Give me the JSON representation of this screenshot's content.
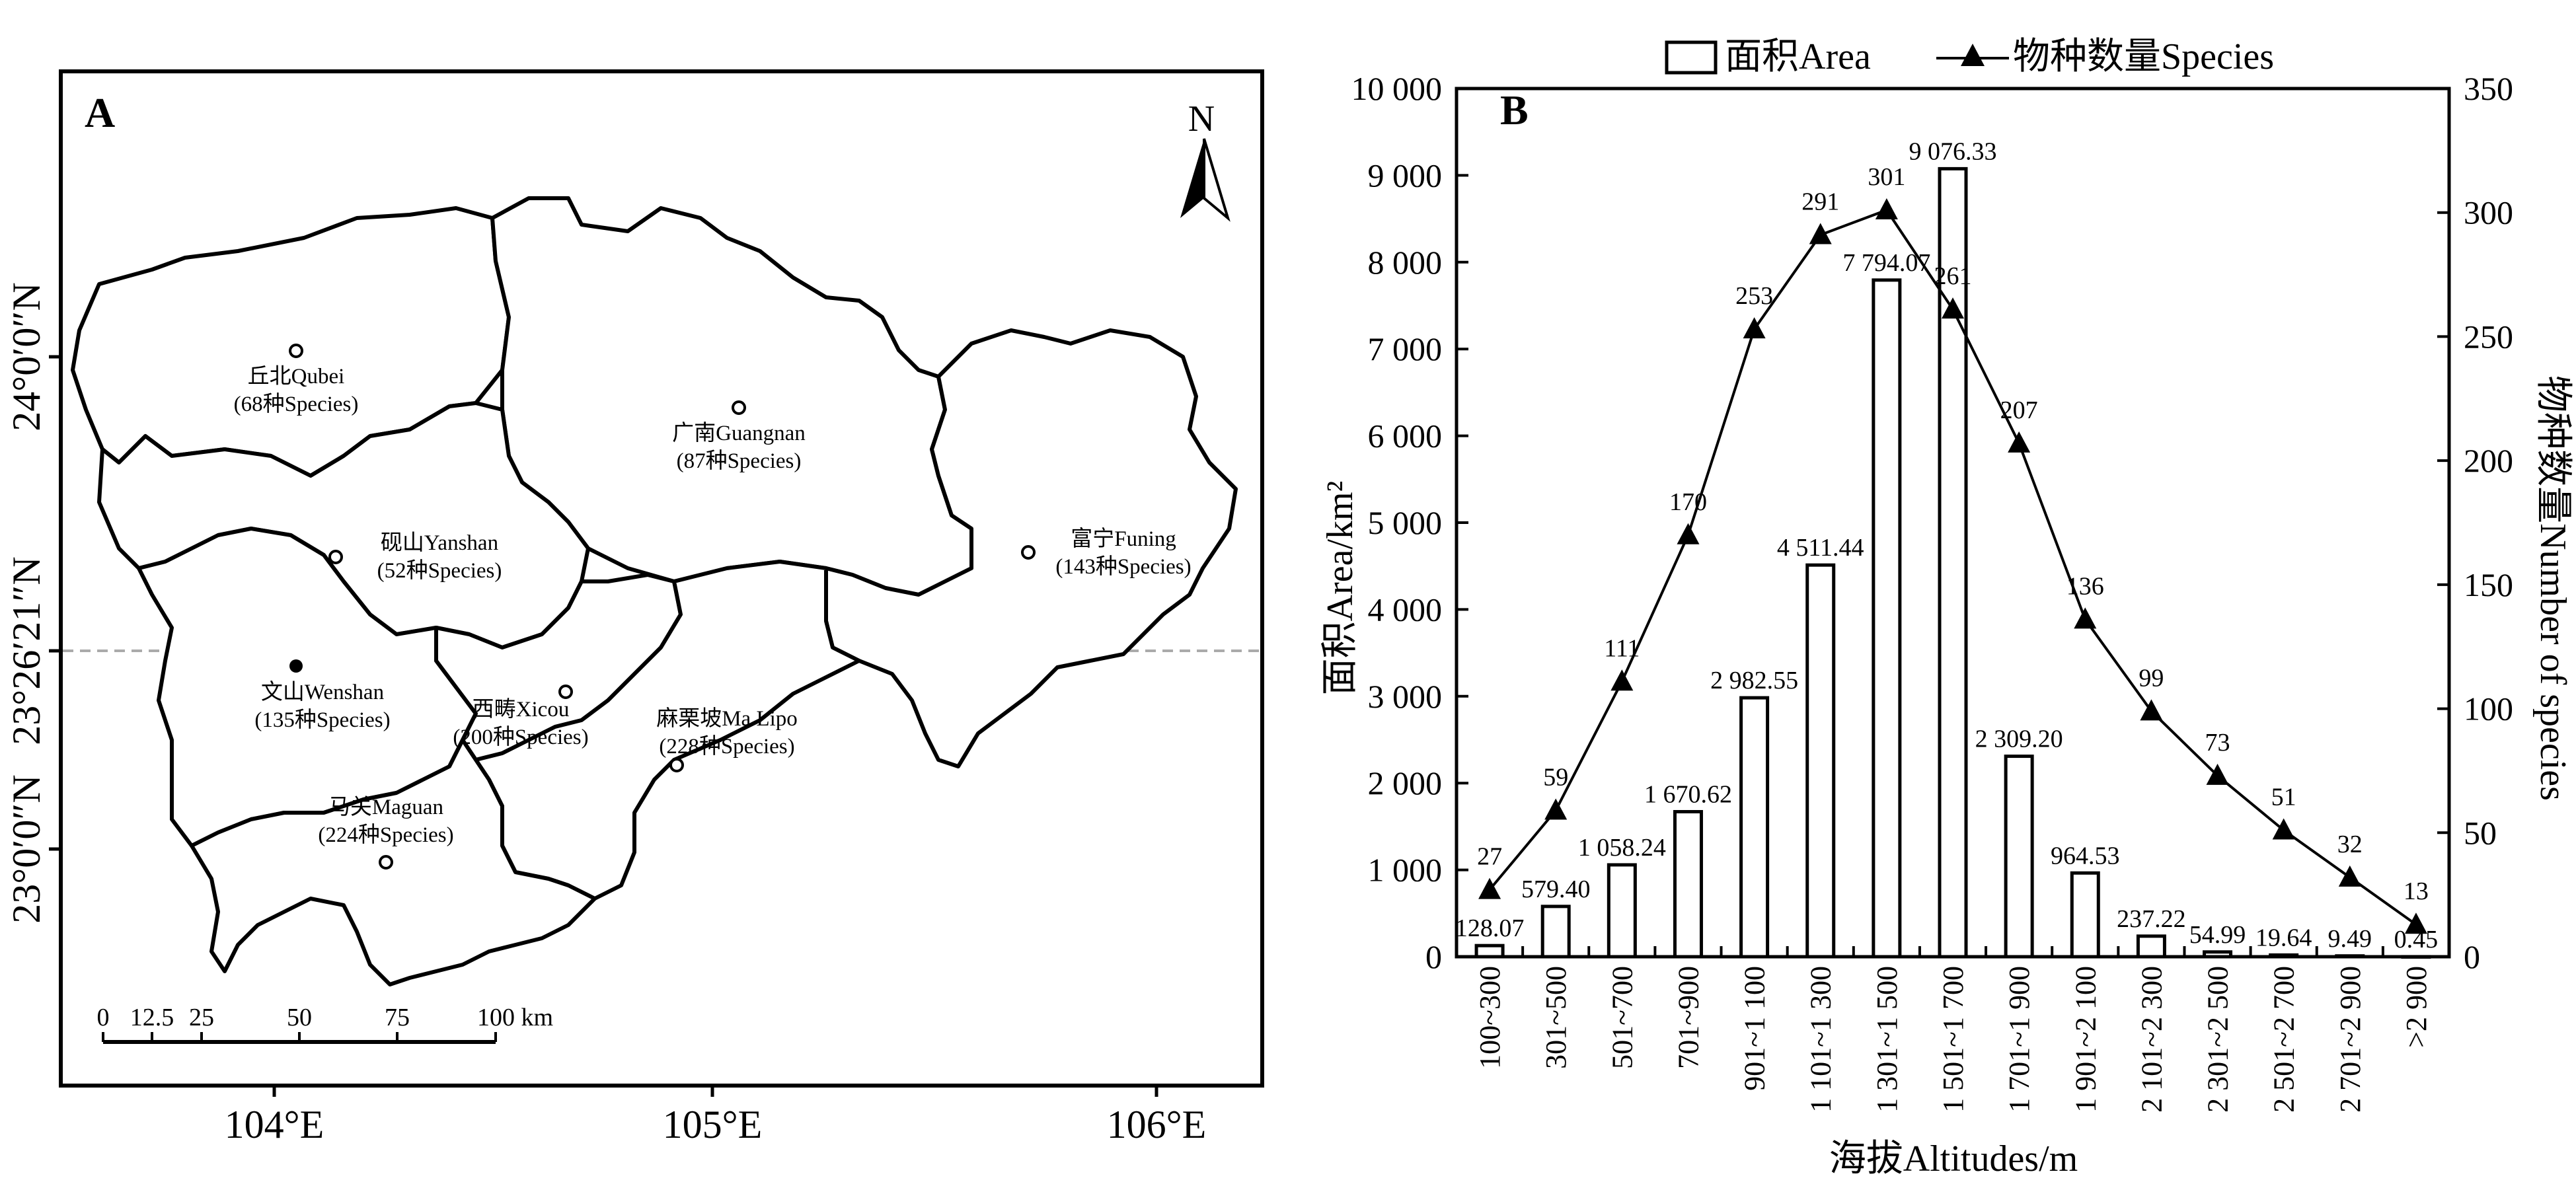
{
  "panel_a": {
    "label": "A",
    "north": "N",
    "lat_labels": [
      "24°0′0″N",
      "23°26′21″N",
      "23°0′0″N"
    ],
    "lon_labels": [
      "104°E",
      "105°E",
      "106°E"
    ],
    "scale_ticks": [
      "0",
      "12.5",
      "25",
      "50",
      "75",
      "100 km"
    ],
    "counties": [
      {
        "name": "丘北Qubei",
        "species": "(68种Species)",
        "seat": "open"
      },
      {
        "name": "广南Guangnan",
        "species": "(87种Species)",
        "seat": "open"
      },
      {
        "name": "砚山Yanshan",
        "species": "(52种Species)",
        "seat": "open"
      },
      {
        "name": "富宁Funing",
        "species": "(143种Species)",
        "seat": "open"
      },
      {
        "name": "文山Wenshan",
        "species": "(135种Species)",
        "seat": "filled"
      },
      {
        "name": "西畴Xicou",
        "species": "(200种Species)",
        "seat": "open"
      },
      {
        "name": "麻栗坡Ma Lipo",
        "species": "(228种Species)",
        "seat": "open"
      },
      {
        "name": "马关Maguan",
        "species": "(224种Species)",
        "seat": "open"
      }
    ]
  },
  "chart_data": {
    "type": "bar",
    "panel_label": "B",
    "categories": [
      "100~300",
      "301~500",
      "501~700",
      "701~900",
      "901~1 100",
      "1 101~1 300",
      "1 301~1 500",
      "1 501~1 700",
      "1 701~1 900",
      "1 901~2 100",
      "2 101~2 300",
      "2 301~2 500",
      "2 501~2 700",
      "2 701~2 900",
      ">2 900"
    ],
    "series": [
      {
        "name": "面积Area",
        "kind": "bar",
        "axis": "left",
        "values": [
          128.07,
          579.4,
          1058.24,
          1670.62,
          2982.55,
          4511.44,
          7794.07,
          9076.33,
          2309.2,
          964.53,
          237.22,
          54.99,
          19.64,
          9.49,
          0.45
        ],
        "labels": [
          "128.07",
          "579.40",
          "1 058.24",
          "1 670.62",
          "2 982.55",
          "4 511.44",
          "7 794.07",
          "9 076.33",
          "2 309.20",
          "964.53",
          "237.22",
          "54.99",
          "19.64",
          "9.49",
          "0.45"
        ]
      },
      {
        "name": "物种数量Species",
        "kind": "line",
        "axis": "right",
        "marker": "triangle",
        "values": [
          27,
          59,
          111,
          170,
          253,
          291,
          301,
          261,
          207,
          136,
          99,
          73,
          51,
          32,
          13
        ],
        "labels": [
          "27",
          "59",
          "111",
          "170",
          "253",
          "291",
          "301",
          "261",
          "207",
          "136",
          "99",
          "73",
          "51",
          "32",
          "13"
        ]
      }
    ],
    "xlabel": "海拔Altitudes/m",
    "ylabel": "面积Area/km²",
    "y2label": "物种数量Number of species",
    "ylim": [
      0,
      10000
    ],
    "y2lim": [
      0,
      350
    ],
    "yticks": [
      0,
      1000,
      2000,
      3000,
      4000,
      5000,
      6000,
      7000,
      8000,
      9000,
      10000
    ],
    "ytick_labels": [
      "0",
      "1 000",
      "2 000",
      "3 000",
      "4 000",
      "5 000",
      "6 000",
      "7 000",
      "8 000",
      "9 000",
      "10 000"
    ],
    "y2ticks": [
      0,
      50,
      100,
      150,
      200,
      250,
      300,
      350
    ],
    "y2tick_labels": [
      "0",
      "50",
      "100",
      "150",
      "200",
      "250",
      "300",
      "350"
    ],
    "legend_position": "top",
    "grid": false
  }
}
